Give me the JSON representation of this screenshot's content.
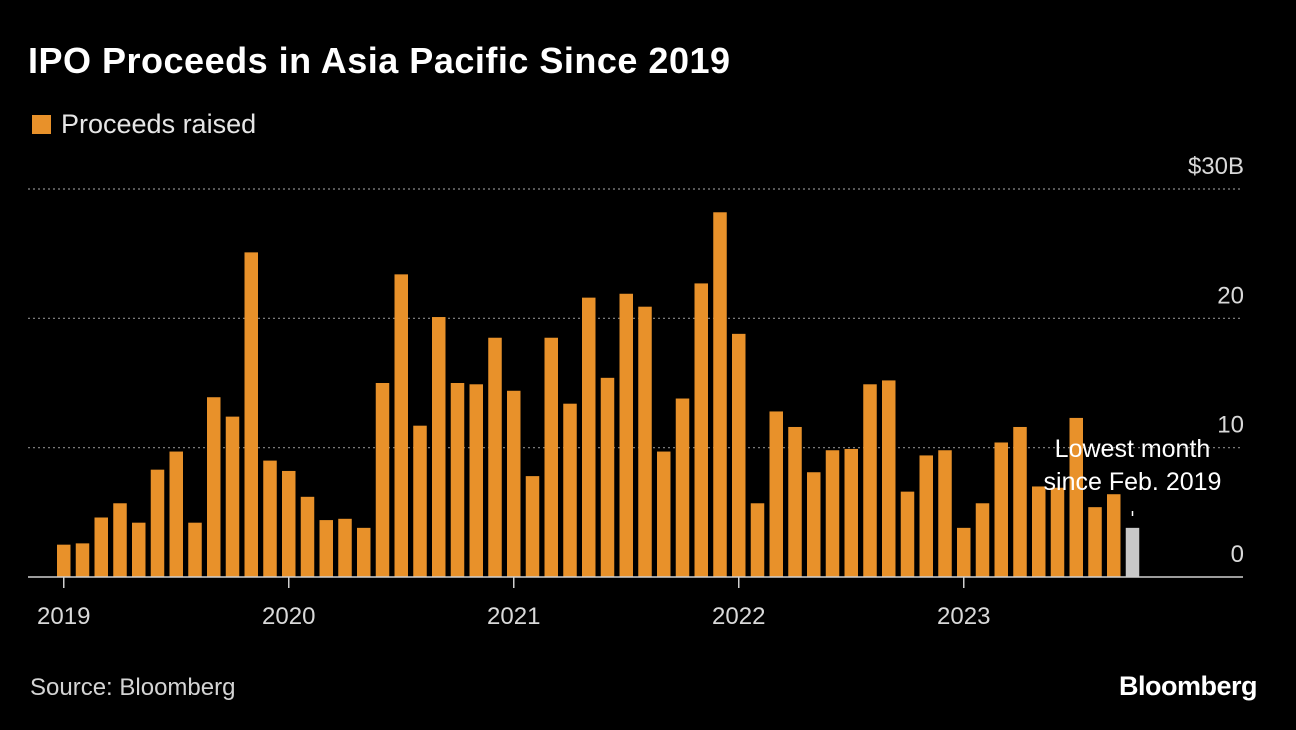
{
  "title": "IPO Proceeds in Asia Pacific Since 2019",
  "legend": {
    "label": "Proceeds raised",
    "color": "#e8912a"
  },
  "source": "Source: Bloomberg",
  "brand": "Bloomberg",
  "highlight_color": "#c8c8c8",
  "chart_data": {
    "type": "bar",
    "title": "IPO Proceeds in Asia Pacific Since 2019",
    "series": [
      {
        "name": "Proceeds raised",
        "values": [
          2.5,
          2.6,
          4.6,
          5.7,
          4.2,
          8.3,
          9.7,
          4.2,
          13.9,
          12.4,
          25.1,
          9.0,
          8.2,
          6.2,
          4.4,
          4.5,
          3.8,
          15.0,
          23.4,
          11.7,
          20.1,
          15.0,
          14.9,
          18.5,
          14.4,
          7.8,
          18.5,
          13.4,
          21.6,
          15.4,
          21.9,
          20.9,
          9.7,
          13.8,
          22.7,
          28.2,
          18.8,
          5.7,
          12.8,
          11.6,
          8.1,
          9.8,
          9.9,
          14.9,
          15.2,
          6.6,
          9.4,
          9.8,
          3.8,
          5.7,
          10.4,
          11.6,
          7.0,
          6.9,
          12.3,
          5.4,
          6.4,
          3.8
        ]
      }
    ],
    "start_month": "2019-01",
    "highlight_last": true,
    "ylim": [
      0,
      30
    ],
    "y_ticks": [
      {
        "value": 0,
        "label": "0"
      },
      {
        "value": 10,
        "label": "10"
      },
      {
        "value": 20,
        "label": "20"
      },
      {
        "value": 30,
        "label": "$30B"
      }
    ],
    "x_ticks": [
      {
        "label": "2019",
        "index": 0
      },
      {
        "label": "2020",
        "index": 12
      },
      {
        "label": "2021",
        "index": 24
      },
      {
        "label": "2022",
        "index": 36
      },
      {
        "label": "2023",
        "index": 48
      }
    ],
    "annotation": {
      "lines": [
        "Lowest month",
        "since Feb. 2019"
      ],
      "index": 57
    },
    "grid": true
  }
}
